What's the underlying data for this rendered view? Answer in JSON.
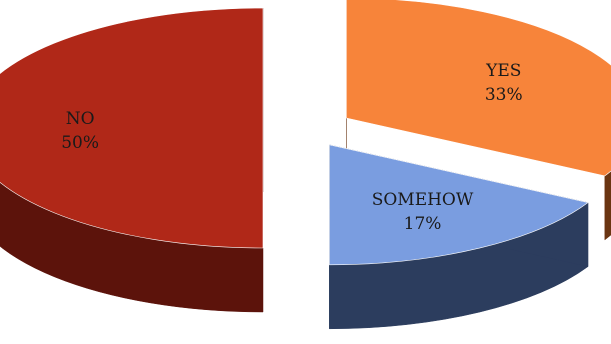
{
  "chart_data": {
    "type": "pie",
    "style": "3d exploded",
    "slices": [
      {
        "label": "YES",
        "value": 33,
        "value_label": "33%",
        "color": "#f7843a",
        "side_color": "#6a3512"
      },
      {
        "label": "SOMEHOW",
        "value": 17,
        "value_label": "17%",
        "color": "#7a9de0",
        "side_color": "#2c3d5e"
      },
      {
        "label": "NO",
        "value": 50,
        "value_label": "50%",
        "color": "#b02818",
        "side_color": "#5c130b"
      }
    ]
  }
}
